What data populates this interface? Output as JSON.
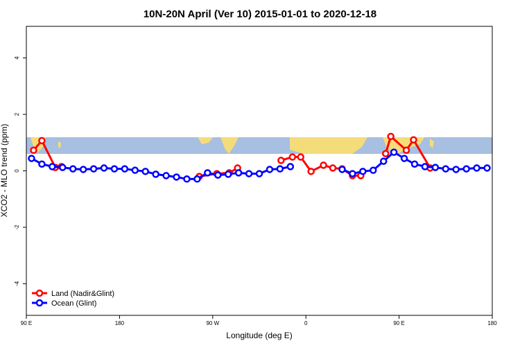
{
  "chart_data": {
    "type": "line",
    "title": "10N-20N April (Ver 10)   2015-01-01 to 2020-12-18",
    "x_label": "Longitude (deg E)",
    "y_label": "XCO2 - MLO trend (ppm)",
    "xlim": [
      90,
      540
    ],
    "xticks": [
      {
        "value": 90,
        "label": "90 E"
      },
      180,
      {
        "value": 270,
        "label": "90 W"
      },
      {
        "value": 360,
        "label": "0"
      },
      {
        "value": 450,
        "label": "90 E"
      },
      {
        "value": 540,
        "label": "180"
      }
    ],
    "ylim": [
      -5.12,
      5.12
    ],
    "yticks": [
      -4,
      -2,
      0,
      2,
      4
    ],
    "legend": "bottom-left",
    "series": [
      {
        "name": "Land (Nadir&Glint)",
        "color": "#ff0000",
        "x": [
          97,
          105,
          118,
          124,
          null,
          257,
          274,
          286,
          294,
          null,
          336,
          347,
          355,
          365,
          377,
          386,
          395,
          405,
          413,
          null,
          437,
          442,
          457,
          464,
          480
        ],
        "values": [
          0.73,
          1.07,
          0.12,
          0.15,
          null,
          -0.2,
          -0.1,
          -0.07,
          0.1,
          null,
          0.37,
          0.49,
          0.49,
          -0.02,
          0.2,
          0.1,
          0.07,
          -0.17,
          -0.17,
          null,
          0.61,
          1.22,
          0.73,
          1.1,
          0.1
        ]
      },
      {
        "name": "Ocean (Glint)",
        "color": "#0000ff",
        "x": [
          95,
          105,
          115,
          125,
          135,
          145,
          155,
          165,
          175,
          185,
          195,
          205,
          215,
          225,
          235,
          245,
          255,
          265,
          275,
          285,
          295,
          305,
          315,
          325,
          335,
          345,
          null,
          null,
          null,
          null,
          395,
          405,
          415,
          425,
          435,
          445,
          455,
          465,
          475,
          485,
          495,
          505,
          515,
          525,
          535
        ],
        "values": [
          0.44,
          0.24,
          0.15,
          0.12,
          0.07,
          0.05,
          0.07,
          0.1,
          0.07,
          0.07,
          0.02,
          -0.02,
          -0.12,
          -0.17,
          -0.22,
          -0.29,
          -0.29,
          -0.07,
          -0.15,
          -0.12,
          -0.07,
          -0.1,
          -0.1,
          0.05,
          0.07,
          0.15,
          null,
          null,
          null,
          null,
          0.05,
          -0.1,
          -0.02,
          0.02,
          0.34,
          0.66,
          0.44,
          0.24,
          0.15,
          0.12,
          0.07,
          0.05,
          0.07,
          0.1,
          0.1
        ]
      }
    ]
  }
}
